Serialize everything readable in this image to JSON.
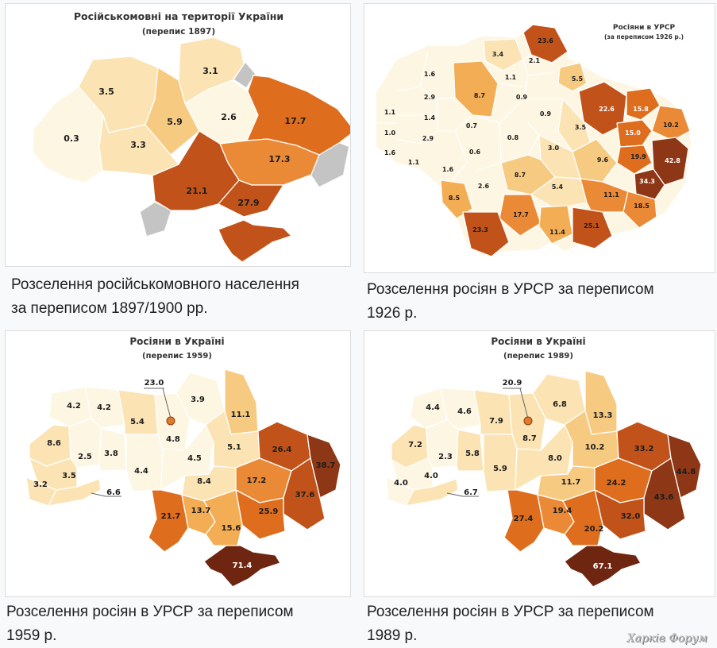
{
  "colors": {
    "c1": "#fdf6e3",
    "c2": "#fbe3b3",
    "c3": "#f7ca82",
    "c4": "#f3ad54",
    "c5": "#eb8a36",
    "c6": "#de6e1d",
    "c7": "#c1531a",
    "c8": "#8e3716",
    "c9": "#6e2611",
    "outside": "#c4c4c4"
  },
  "panels": [
    {
      "title": "Російськомовні на території України",
      "subtitle": "(перепис 1897)",
      "caption_line1": "Розселення російськомовного населення",
      "caption_line2": "за переписом 1897/1900 рр.",
      "values": [
        "0.3",
        "3.5",
        "3.3",
        "5.9",
        "3.1",
        "2.6",
        "17.7",
        "17.3",
        "21.1",
        "27.9"
      ]
    },
    {
      "title": "Росіяни в УРСР",
      "subtitle": "(за переписом 1926 р.)",
      "caption_line1": "Розселення росіян в УРСР за переписом",
      "caption_line2": "1926 р.",
      "values": [
        "23.6",
        "3.4",
        "2.1",
        "1.1",
        "5.5",
        "1.6",
        "8.7",
        "0.9",
        "0.9",
        "1.1",
        "2.9",
        "1.4",
        "0.7",
        "0.8",
        "3.5",
        "22.6",
        "15.8",
        "15.0",
        "10.2",
        "1.0",
        "2.9",
        "0.6",
        "3.0",
        "9.6",
        "19.9",
        "42.8",
        "1.6",
        "1.1",
        "1.6",
        "2.6",
        "8.7",
        "5.4",
        "34.3",
        "8.5",
        "11.1",
        "18.5",
        "17.7",
        "23.3",
        "11.4",
        "25.1"
      ]
    },
    {
      "title": "Росіяни в Україні",
      "subtitle": "(перепис 1959)",
      "caption_line1": "Розселення росіян в УРСР за переписом",
      "caption_line2": "1959 р.",
      "values": [
        "23.0",
        "4.2",
        "4.2",
        "5.4",
        "3.9",
        "11.1",
        "8.6",
        "2.5",
        "3.8",
        "4.8",
        "4.5",
        "5.1",
        "26.4",
        "38.7",
        "3.5",
        "4.4",
        "8.4",
        "17.2",
        "3.2",
        "6.6",
        "37.6",
        "13.7",
        "21.7",
        "25.9",
        "15.6",
        "71.4"
      ]
    },
    {
      "title": "Росіяни в Україні",
      "subtitle": "(перепис 1989)",
      "caption_line1": "Розселення росіян в УРСР за переписом",
      "caption_line2": "1989 р.",
      "values": [
        "20.9",
        "4.4",
        "4.6",
        "7.9",
        "6.8",
        "13.3",
        "7.2",
        "8.7",
        "8.0",
        "5.8",
        "2.3",
        "10.2",
        "33.2",
        "4.0",
        "4.0",
        "5.9",
        "11.7",
        "24.2",
        "44.8",
        "6.7",
        "43.6",
        "27.4",
        "19.4",
        "32.0",
        "20.2",
        "67.1"
      ]
    }
  ],
  "watermark": "Харків Форум"
}
